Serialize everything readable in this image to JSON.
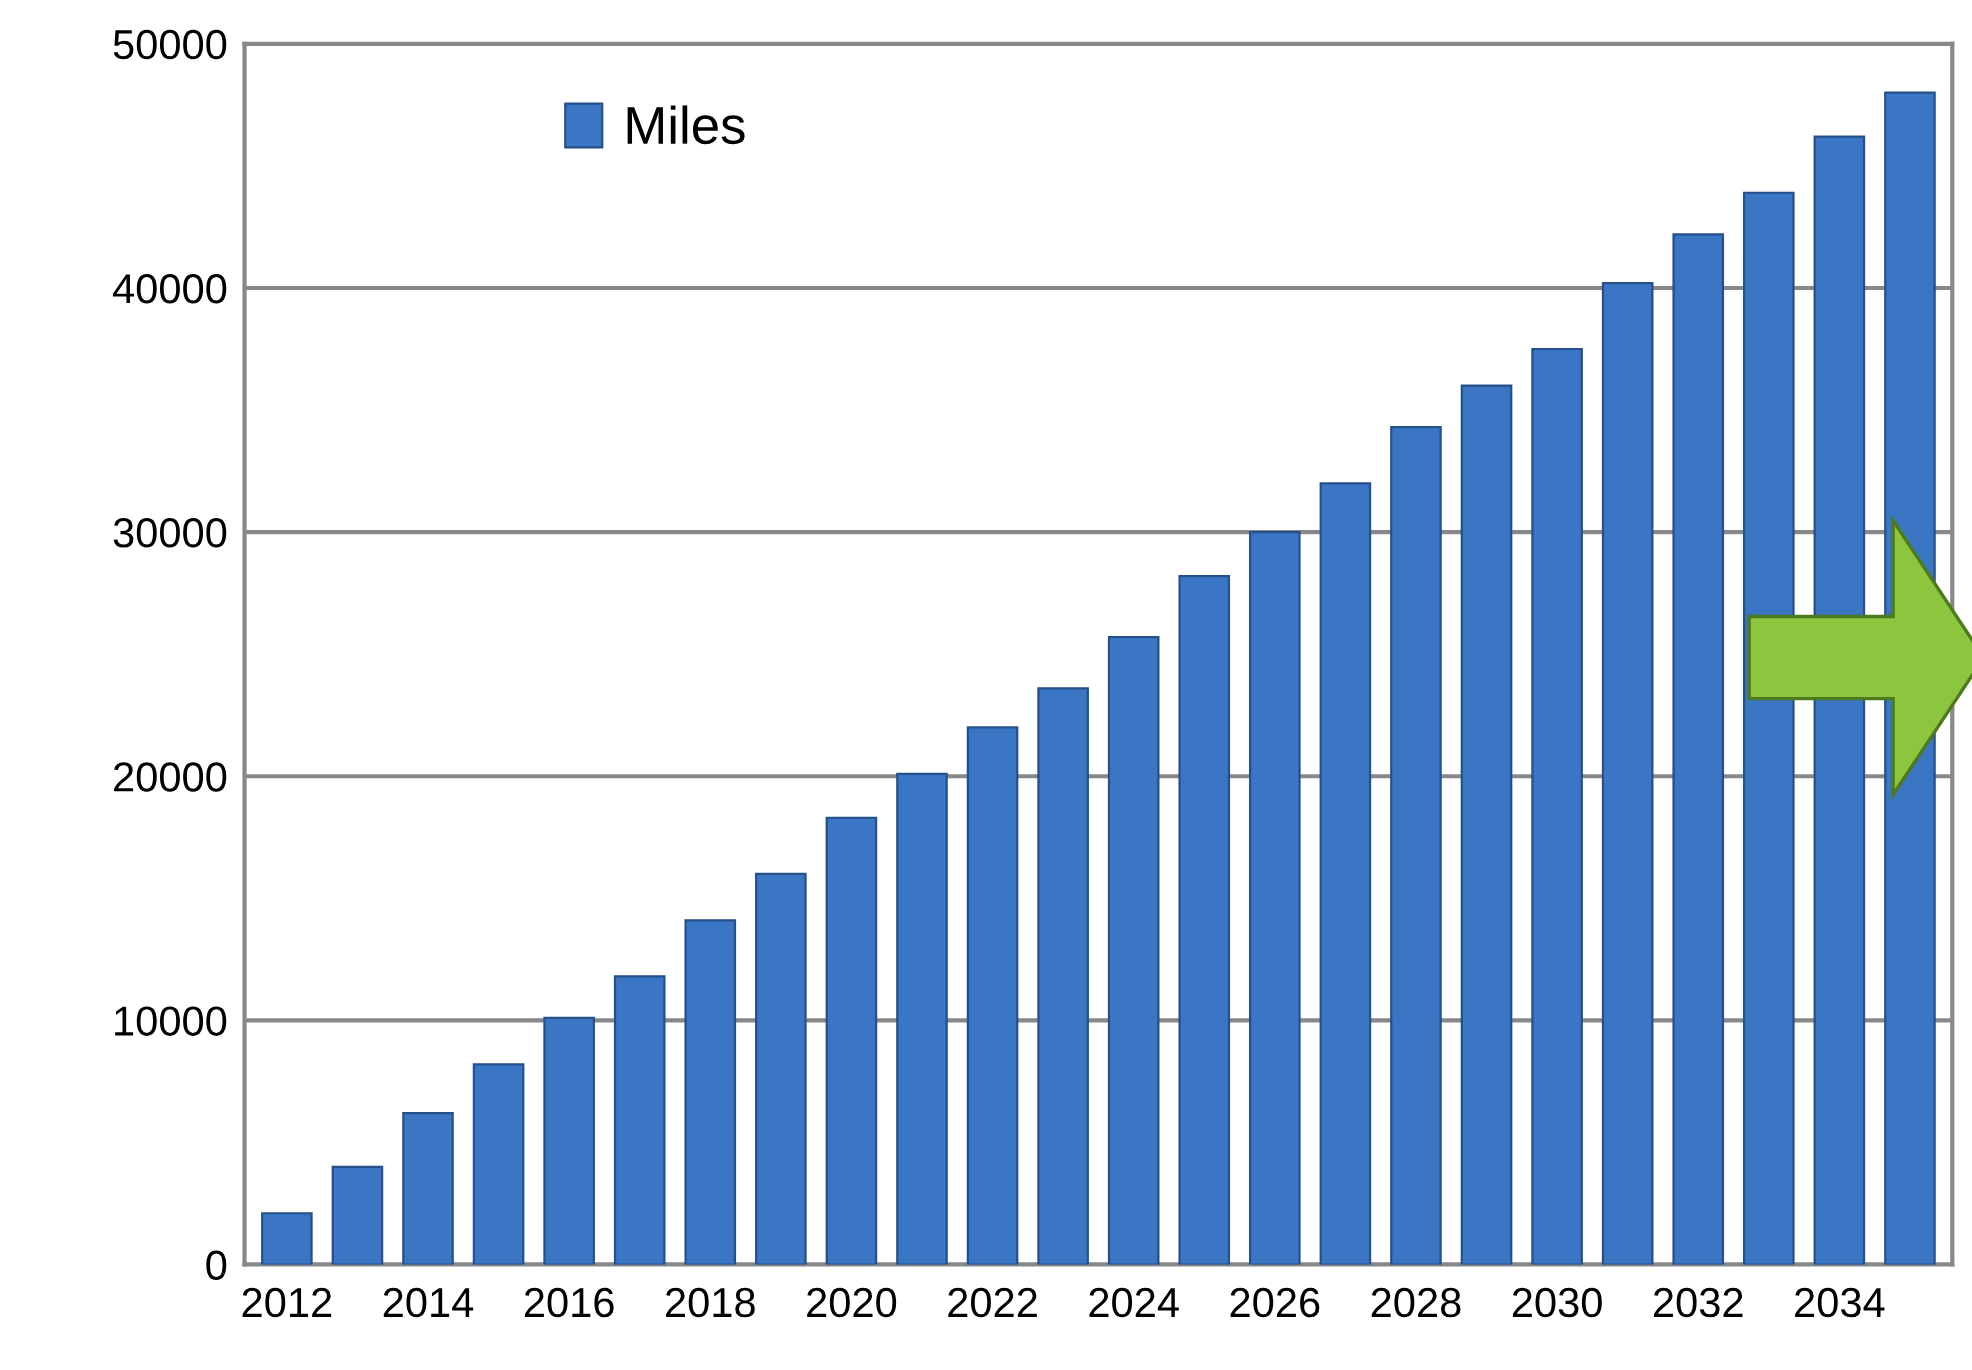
{
  "chart_data": {
    "type": "bar",
    "categories": [
      "2012",
      null,
      "2014",
      null,
      "2016",
      null,
      "2018",
      null,
      "2020",
      null,
      "2022",
      null,
      "2024",
      null,
      "2026",
      null,
      "2028",
      null,
      "2030",
      null,
      "2032",
      null,
      "2034",
      null
    ],
    "series": [
      {
        "name": "Miles",
        "color": "#3a76c4",
        "values": [
          2100,
          4000,
          6200,
          8200,
          10100,
          11800,
          14100,
          16000,
          18300,
          20100,
          22000,
          23600,
          25700,
          28200,
          30000,
          32000,
          34300,
          36000,
          37500,
          40200,
          42200,
          43900,
          46200,
          48000
        ]
      }
    ],
    "ylim": [
      0,
      50000
    ],
    "yticks": [
      0,
      10000,
      20000,
      30000,
      40000,
      50000
    ],
    "grid": "y",
    "legend": "top left"
  }
}
